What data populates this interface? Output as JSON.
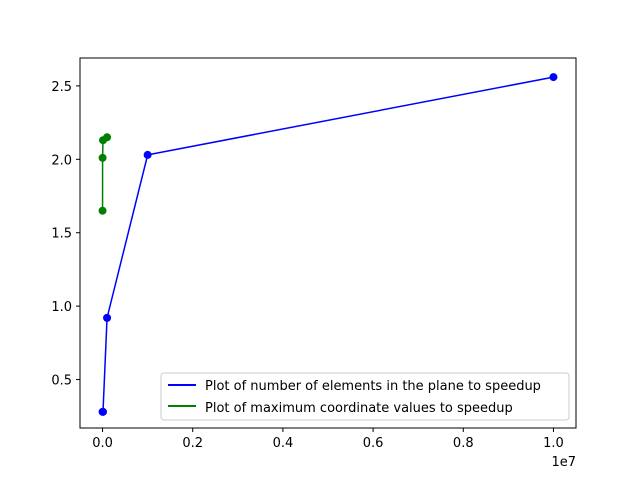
{
  "chart_data": {
    "type": "line",
    "title": "",
    "xlabel": "",
    "ylabel": "",
    "x_offset_label": "1e7",
    "xlim": [
      -500000,
      10500000
    ],
    "ylim": [
      0.17,
      2.69
    ],
    "x_ticks": [
      0,
      2000000,
      4000000,
      6000000,
      8000000,
      10000000
    ],
    "x_tick_labels": [
      "0.0",
      "0.2",
      "0.4",
      "0.6",
      "0.8",
      "1.0"
    ],
    "y_ticks": [
      0.5,
      1.0,
      1.5,
      2.0,
      2.5
    ],
    "y_tick_labels": [
      "0.5",
      "1.0",
      "1.5",
      "2.0",
      "2.5"
    ],
    "grid": false,
    "legend_position": "lower-right",
    "series": [
      {
        "name": "Plot of number of elements in the plane to speedup",
        "color": "#0000ff",
        "x": [
          1000,
          10000,
          100000,
          1000000,
          10000000
        ],
        "y": [
          0.28,
          0.28,
          0.92,
          2.03,
          2.56
        ]
      },
      {
        "name": "Plot of maximum coordinate values to speedup",
        "color": "#008000",
        "x": [
          100,
          1000,
          10000,
          100000
        ],
        "y": [
          1.65,
          2.01,
          2.13,
          2.15
        ]
      }
    ]
  }
}
